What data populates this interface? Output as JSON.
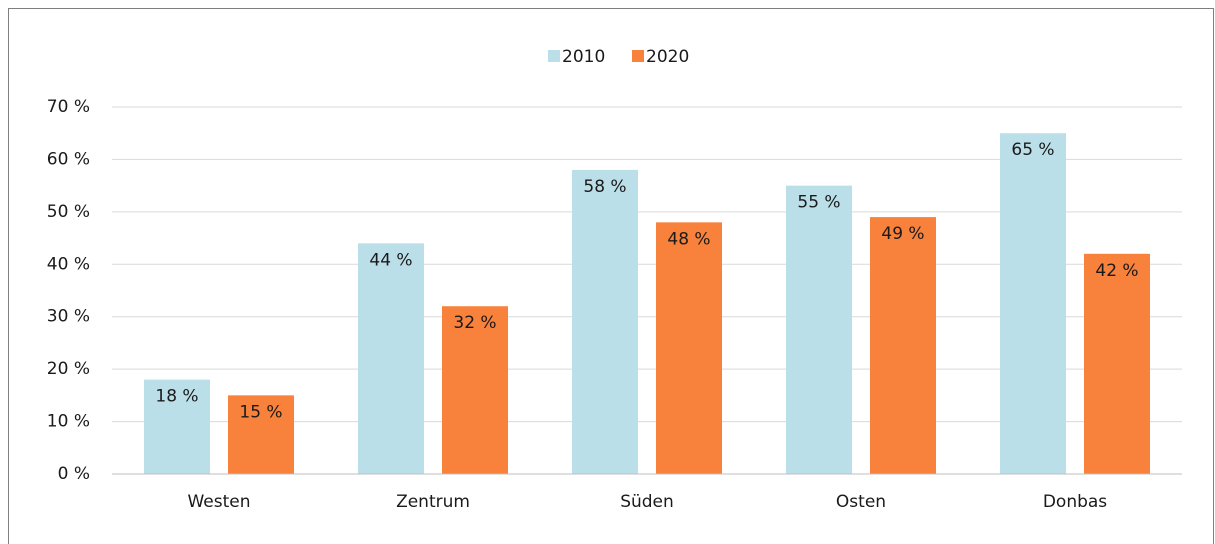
{
  "chart_data": {
    "type": "bar",
    "categories": [
      "Westen",
      "Zentrum",
      "Süden",
      "Osten",
      "Donbas"
    ],
    "series": [
      {
        "name": "2010",
        "color": "#badfe9",
        "values": [
          18,
          44,
          58,
          55,
          65
        ],
        "value_labels": [
          "18 %",
          "44 %",
          "58 %",
          "55 %",
          "65 %"
        ]
      },
      {
        "name": "2020",
        "color": "#f8813b",
        "values": [
          15,
          32,
          48,
          49,
          42
        ],
        "value_labels": [
          "15 %",
          "32 %",
          "48 %",
          "49 %",
          "42 %"
        ]
      }
    ],
    "ylim": [
      0,
      70
    ],
    "yticks": [
      {
        "value": 0,
        "label": "0 %"
      },
      {
        "value": 10,
        "label": "10 %"
      },
      {
        "value": 20,
        "label": "20 %"
      },
      {
        "value": 30,
        "label": "30 %"
      },
      {
        "value": 40,
        "label": "40 %"
      },
      {
        "value": 50,
        "label": "50 %"
      },
      {
        "value": 60,
        "label": "60 %"
      },
      {
        "value": 70,
        "label": "70 %"
      }
    ],
    "grid": true,
    "legend": "top"
  }
}
